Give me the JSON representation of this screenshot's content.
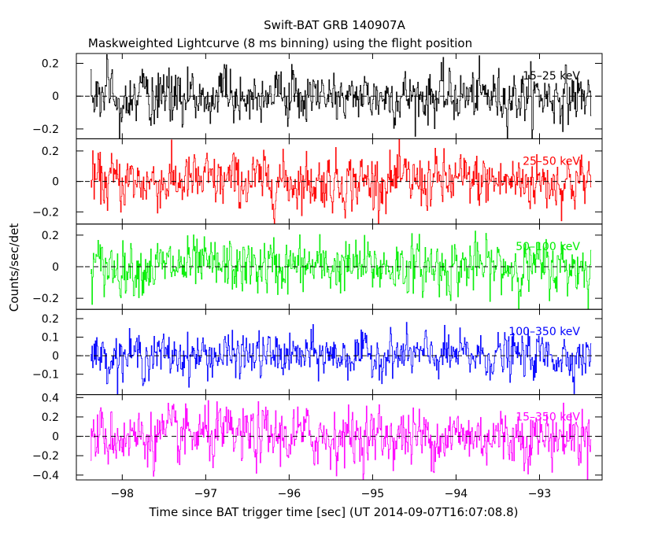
{
  "chart_data": {
    "type": "line",
    "title": "Swift-BAT GRB 140907A",
    "subtitle": "Maskweighted Lightcurve (8 ms binning) using the flight position",
    "xlabel": "Time since BAT trigger time [sec] (UT 2014-09-07T16:07:08.8)",
    "ylabel": "Counts/sec/det",
    "xlim": [
      -98.55,
      -92.25
    ],
    "x_ticks": [
      -98,
      -97,
      -96,
      -95,
      -94,
      -93
    ],
    "x_tick_labels": [
      "−98",
      "−97",
      "−96",
      "−95",
      "−94",
      "−93"
    ],
    "data_range": [
      -98.38,
      -92.38
    ],
    "bin_size": 0.008,
    "grid": false,
    "zero_line": "dashed",
    "panels": [
      {
        "name": "15–25 keV",
        "color": "#000000",
        "ylim": [
          -0.26,
          0.26
        ],
        "amplitude": 0.075,
        "y_ticks": [
          -0.2,
          0,
          0.2
        ],
        "y_tick_labels": [
          "−0.2",
          "0",
          "0.2"
        ]
      },
      {
        "name": "25–50 keV",
        "color": "#ff0000",
        "ylim": [
          -0.28,
          0.28
        ],
        "amplitude": 0.085,
        "y_ticks": [
          -0.2,
          0,
          0.2
        ],
        "y_tick_labels": [
          "−0.2",
          "0",
          "0.2"
        ]
      },
      {
        "name": "50–100 keV",
        "color": "#00ee00",
        "ylim": [
          -0.27,
          0.27
        ],
        "amplitude": 0.08,
        "y_ticks": [
          -0.2,
          0,
          0.2
        ],
        "y_tick_labels": [
          "−0.2",
          "0",
          "0.2"
        ]
      },
      {
        "name": "100–350 keV",
        "color": "#0000ff",
        "ylim": [
          -0.21,
          0.25
        ],
        "amplitude": 0.055,
        "y_ticks": [
          -0.1,
          0,
          0.1,
          0.2
        ],
        "y_tick_labels": [
          "−0.1",
          "0",
          "0.1",
          "0.2"
        ]
      },
      {
        "name": "15–350 keV",
        "color": "#ff00ff",
        "ylim": [
          -0.45,
          0.43
        ],
        "amplitude": 0.14,
        "y_ticks": [
          -0.4,
          -0.2,
          0,
          0.2,
          0.4
        ],
        "y_tick_labels": [
          "−0.4",
          "−0.2",
          "0",
          "0.2",
          "0.4"
        ]
      }
    ]
  }
}
